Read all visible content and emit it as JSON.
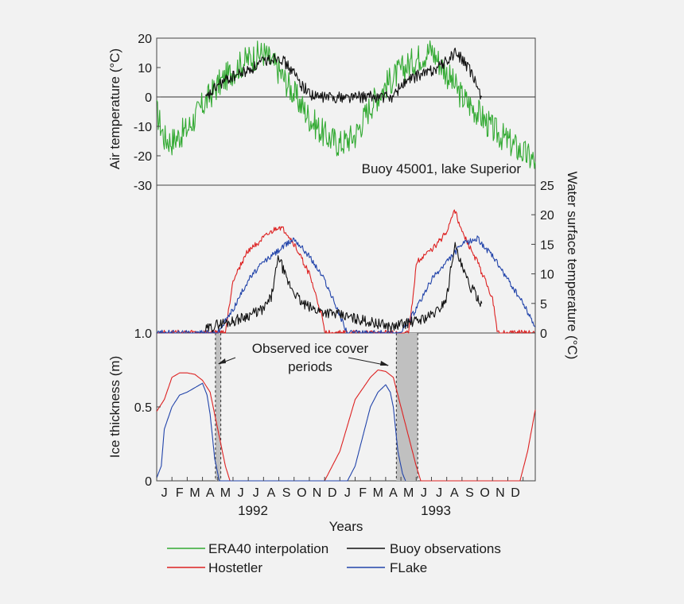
{
  "chart_data": [
    {
      "type": "line",
      "panel": "air-temperature",
      "ylabel": "Air temperature (°C)",
      "ylim": [
        -30,
        20
      ],
      "yticks": [
        "20",
        "10",
        "0",
        "-10",
        "-20",
        "-30"
      ],
      "annotation": "Buoy 45001, lake Superior",
      "series": [
        {
          "name": "ERA40 interpolation",
          "color": "#33aa33",
          "x": [
            0,
            0.5,
            1,
            2,
            3,
            4,
            5,
            6,
            7,
            8,
            9,
            10,
            11,
            12,
            13,
            14,
            15,
            16,
            17,
            18,
            19,
            20,
            21,
            22,
            23,
            24,
            24.8
          ],
          "y": [
            -5,
            -14,
            -15,
            -11,
            -3,
            4,
            9,
            13,
            15,
            9,
            1,
            -7,
            -13,
            -16,
            -13,
            -3,
            4,
            9,
            13,
            16,
            8,
            0,
            -5,
            -11,
            -15,
            -19,
            -22
          ]
        },
        {
          "name": "Buoy observations",
          "color": "#111111",
          "x": [
            3.2,
            4,
            5,
            6,
            7,
            8,
            8.5,
            9,
            9.5,
            10.3,
            15.5,
            16,
            17,
            18,
            19,
            19.5,
            20,
            20.5,
            21.3
          ],
          "y": [
            -1,
            4,
            7,
            9,
            12,
            14,
            11,
            8,
            4,
            0,
            0,
            4,
            7,
            9,
            12,
            15,
            13,
            9,
            0
          ]
        }
      ]
    },
    {
      "type": "line",
      "panel": "water-surface-temperature",
      "ylabel": "Water surface temperature (°C)",
      "ylim": [
        0,
        25
      ],
      "yticks": [
        "25",
        "20",
        "15",
        "10",
        "5",
        "0"
      ],
      "left_tick": "1.0",
      "series": [
        {
          "name": "Hostetler",
          "color": "#dd2222",
          "x": [
            0,
            4.5,
            5,
            6,
            7,
            8,
            8.5,
            9,
            10,
            10.8,
            11,
            16.5,
            16.8,
            17,
            18,
            19,
            19.5,
            20,
            21,
            22,
            22.3,
            24.8
          ],
          "y": [
            0,
            0,
            9,
            14,
            16,
            18,
            17,
            15,
            10,
            3,
            0,
            0,
            6,
            12,
            14,
            17,
            21,
            17,
            12,
            6,
            0,
            0
          ]
        },
        {
          "name": "FLake",
          "color": "#2244aa",
          "x": [
            0,
            4,
            5,
            6,
            7,
            8,
            9,
            10,
            11,
            12,
            12.5,
            16,
            17,
            18,
            19,
            20,
            21,
            22,
            23,
            24,
            24.8
          ],
          "y": [
            0,
            0,
            4,
            9,
            12,
            14,
            16,
            13,
            9,
            3,
            0,
            0,
            4,
            9,
            12,
            15,
            16,
            13,
            9,
            5,
            1
          ]
        },
        {
          "name": "Buoy observations",
          "color": "#111111",
          "x": [
            3.2,
            4,
            5,
            6,
            7,
            7.5,
            8,
            8.5,
            9,
            9.5,
            10.3,
            15.5,
            16,
            17,
            18,
            18.5,
            19,
            19.5,
            20,
            20.5,
            21.3
          ],
          "y": [
            0.5,
            1.5,
            2,
            3,
            4,
            6,
            13,
            9,
            7,
            5,
            4,
            1,
            1.5,
            2,
            3,
            4,
            6,
            15,
            11,
            8,
            5
          ]
        }
      ]
    },
    {
      "type": "line",
      "panel": "ice-thickness",
      "ylabel": "Ice thickness (m)",
      "ylim": [
        0,
        1.0
      ],
      "yticks": [
        "1.0",
        "0.5",
        "0"
      ],
      "xlabel": "Years",
      "months": [
        "J",
        "F",
        "M",
        "A",
        "M",
        "J",
        "J",
        "A",
        "S",
        "O",
        "N",
        "D",
        "J",
        "F",
        "M",
        "A",
        "M",
        "J",
        "J",
        "A",
        "S",
        "O",
        "N",
        "D"
      ],
      "year_labels": [
        "1992",
        "1993"
      ],
      "annotation": [
        "Observed ice cover",
        "periods"
      ],
      "ice_cover_periods": [
        [
          3.85,
          4.2
        ],
        [
          15.7,
          17.1
        ]
      ],
      "series": [
        {
          "name": "Hostetler",
          "color": "#dd2222",
          "x": [
            0,
            0.5,
            1,
            1.5,
            2,
            2.5,
            3,
            3.5,
            4,
            4.5,
            4.8,
            11,
            12,
            13,
            14,
            14.5,
            15,
            15.5,
            16,
            16.5,
            17,
            17.3,
            23.8,
            24.3,
            24.8
          ],
          "y": [
            0.47,
            0.55,
            0.7,
            0.73,
            0.73,
            0.72,
            0.68,
            0.6,
            0.35,
            0.1,
            0,
            0,
            0.2,
            0.55,
            0.7,
            0.75,
            0.74,
            0.7,
            0.5,
            0.3,
            0.1,
            0,
            0,
            0.2,
            0.48
          ]
        },
        {
          "name": "FLake",
          "color": "#2244aa",
          "x": [
            0,
            0.3,
            0.5,
            1,
            1.5,
            2,
            2.5,
            3,
            3.3,
            3.5,
            3.8,
            4.1,
            12.5,
            13,
            13.5,
            14,
            14.5,
            15,
            15.3,
            15.5,
            15.8,
            16.1,
            16.3
          ],
          "y": [
            0.02,
            0.1,
            0.35,
            0.5,
            0.58,
            0.6,
            0.63,
            0.66,
            0.58,
            0.45,
            0.15,
            0,
            0,
            0.1,
            0.3,
            0.5,
            0.6,
            0.65,
            0.6,
            0.5,
            0.2,
            0.05,
            0
          ]
        }
      ]
    }
  ],
  "legend": [
    {
      "label": "ERA40 interpolation",
      "color": "#33aa33"
    },
    {
      "label": "Buoy observations",
      "color": "#111111"
    },
    {
      "label": "Hostetler",
      "color": "#dd2222"
    },
    {
      "label": "FLake",
      "color": "#2244aa"
    }
  ]
}
